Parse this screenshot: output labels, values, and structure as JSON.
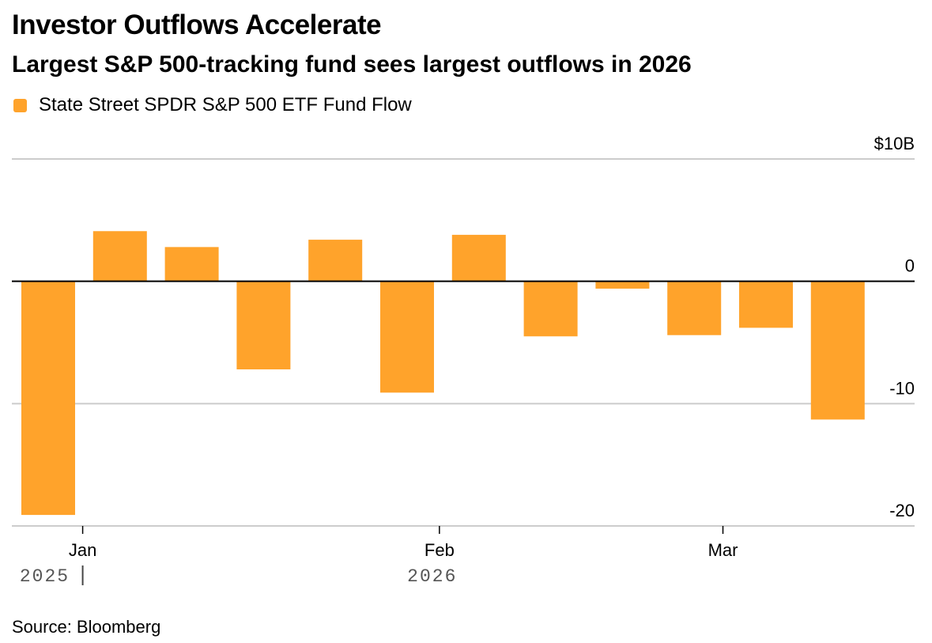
{
  "title": "Investor Outflows Accelerate",
  "subtitle": "Largest S&P 500-tracking fund sees largest outflows in 2026",
  "legend": {
    "label": "State Street SPDR S&P 500 ETF Fund Flow"
  },
  "source": "Source: Bloomberg",
  "colors": {
    "bar": "#FFA32B",
    "grid": "#cccccc",
    "zero": "#000000",
    "axis_text": "#000000",
    "year_text": "#555555"
  },
  "chart_data": {
    "type": "bar",
    "title": "Investor Outflows Accelerate",
    "subtitle": "Largest S&P 500-tracking fund sees largest outflows in 2026",
    "series": [
      {
        "name": "State Street SPDR S&P 500 ETF Fund Flow",
        "values": [
          -19.1,
          4.1,
          2.8,
          -7.2,
          3.4,
          -9.1,
          3.8,
          -4.5,
          -0.6,
          -4.4,
          -3.8,
          -11.3
        ]
      }
    ],
    "unit": "$B",
    "ylim": [
      -20,
      10
    ],
    "yticks": [
      {
        "value": 10,
        "label": "$10B"
      },
      {
        "value": 0,
        "label": "0"
      },
      {
        "value": -10,
        "label": "-10"
      },
      {
        "value": -20,
        "label": "-20"
      }
    ],
    "month_ticks": [
      {
        "label": "Jan",
        "after_bar": 0.48
      },
      {
        "label": "Feb",
        "after_bar": 5.45
      },
      {
        "label": "Mar",
        "after_bar": 9.4
      }
    ],
    "year_labels": [
      {
        "label": "2025",
        "near_bar": -0.05,
        "separator": true
      },
      {
        "label": "2026",
        "near_bar": 5.35,
        "separator": false
      }
    ],
    "grid": true,
    "legend_position": "top-left"
  }
}
